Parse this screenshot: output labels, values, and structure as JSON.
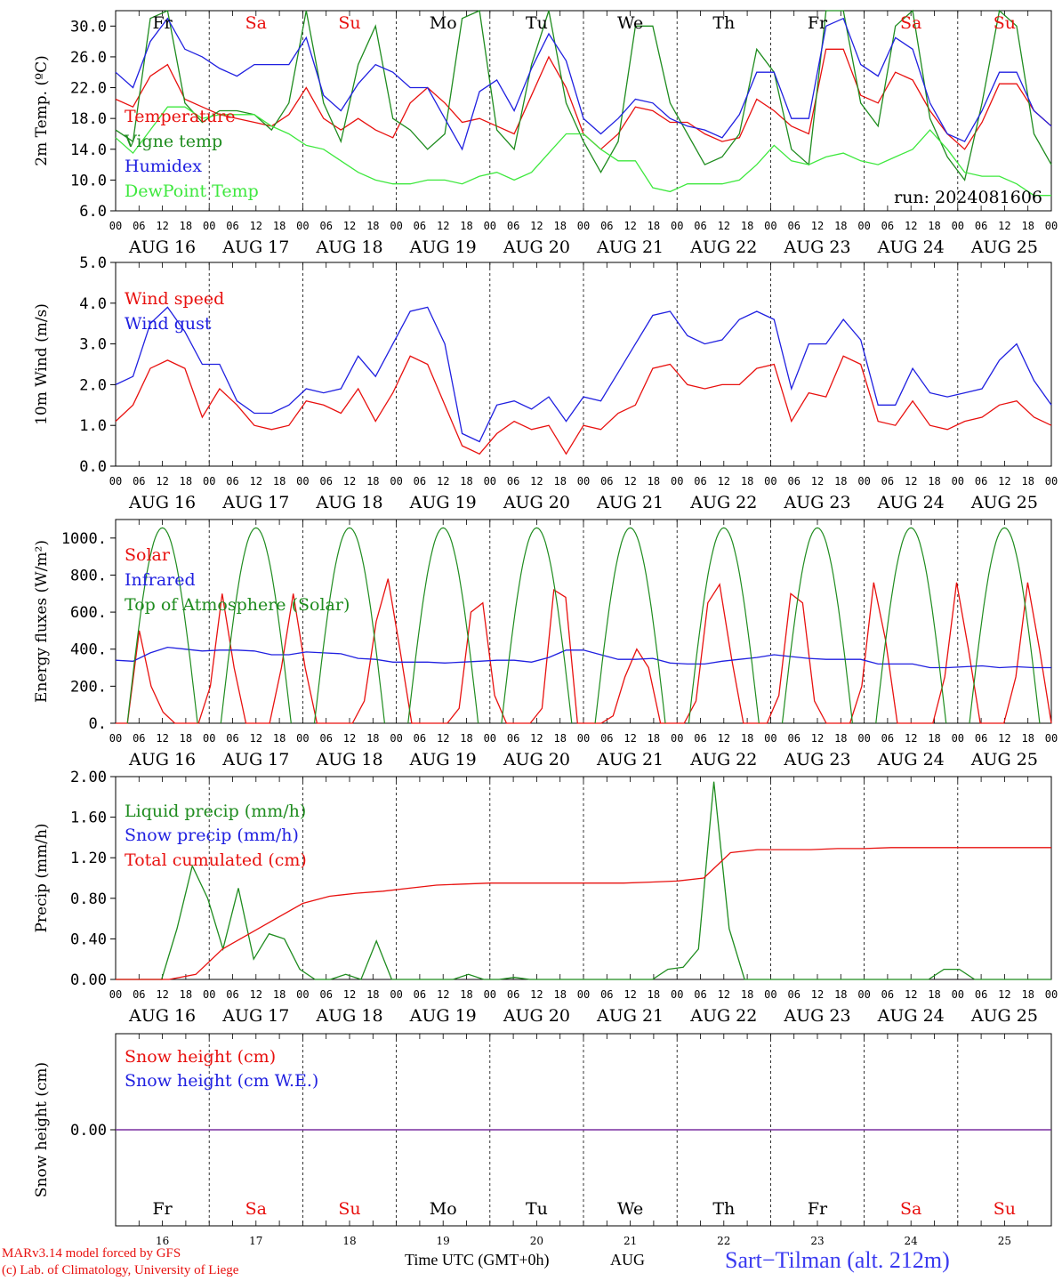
{
  "colors": {
    "red": "#e8110f",
    "green": "#1f8c1f",
    "blue": "#2020e0",
    "lightgreen": "#3ee83e",
    "purple": "#7a2fa0",
    "title_blue": "#3a3af0"
  },
  "days": {
    "weekdays": [
      "Fr",
      "Sa",
      "Su",
      "Mo",
      "Tu",
      "We",
      "Th",
      "Fr",
      "Sa",
      "Su"
    ],
    "weekend_flags": [
      false,
      true,
      true,
      false,
      false,
      false,
      false,
      false,
      true,
      true
    ],
    "dates": [
      "AUG 16",
      "AUG 17",
      "AUG 18",
      "AUG 19",
      "AUG 20",
      "AUG 21",
      "AUG 22",
      "AUG 23",
      "AUG 24",
      "AUG 25"
    ],
    "day_numbers": [
      "16",
      "17",
      "18",
      "19",
      "20",
      "21",
      "22",
      "23",
      "24",
      "25"
    ],
    "hour_ticks": [
      "00",
      "06",
      "12",
      "18"
    ],
    "final_tick": "00"
  },
  "footer": {
    "credit1": "MARv3.14 model forced by GFS",
    "credit2": "(c) Lab. of Climatology, University of Liege",
    "time_label": "Time UTC (GMT+0h)",
    "month": "AUG",
    "station": "Sart−Tilman (alt. 212m)"
  },
  "chart_data": [
    {
      "type": "line",
      "ylabel": "2m Temp. (ºC)",
      "ylim": [
        6,
        32
      ],
      "yticks": [
        "30.0",
        "26.0",
        "22.0",
        "18.0",
        "14.0",
        "10.0",
        "6.0"
      ],
      "run_label": "run: 2024081606",
      "legend": [
        "Temperature",
        "Vigne temp",
        "Humidex",
        "DewPoint Temp"
      ],
      "series": [
        {
          "name": "Temperature",
          "color": "red",
          "values": [
            20.5,
            19.5,
            23.5,
            25,
            20.5,
            19.5,
            18.5,
            18,
            17.5,
            17,
            18.5,
            22,
            18,
            16.5,
            18,
            16.5,
            15.5,
            20,
            22,
            20,
            17.5,
            18,
            17,
            16,
            21,
            26,
            22,
            16,
            14,
            16,
            19.5,
            19,
            17.5,
            17.5,
            16,
            15,
            15.5,
            20.5,
            19,
            17,
            16,
            27,
            27,
            21,
            20,
            24,
            23,
            19,
            16,
            14,
            17.5,
            22.5,
            22.5,
            19,
            17
          ]
        },
        {
          "name": "Vigne temp",
          "color": "green",
          "values": [
            16.5,
            15,
            31,
            35,
            20,
            17.5,
            19,
            19,
            18.5,
            16.5,
            20,
            32,
            20,
            15,
            25,
            30,
            18,
            16.5,
            14,
            16,
            31,
            33,
            16.5,
            14,
            25,
            34,
            20,
            15,
            11,
            15,
            30,
            30,
            20,
            16,
            12,
            13,
            16,
            27,
            24,
            14,
            12,
            33,
            32,
            20,
            17,
            30,
            32,
            18,
            13,
            10,
            20,
            34,
            30,
            16,
            12
          ]
        },
        {
          "name": "Humidex",
          "color": "blue",
          "values": [
            24,
            22,
            28,
            31,
            27,
            26,
            24.5,
            23.5,
            25,
            25,
            25,
            28.5,
            21,
            19,
            22.5,
            25,
            24,
            22,
            22,
            18,
            14,
            21.5,
            23,
            19,
            24.5,
            29,
            25.5,
            18,
            16,
            18,
            20.5,
            20,
            18,
            17,
            16.5,
            15.5,
            18.5,
            24,
            24,
            18,
            18,
            30,
            31,
            25,
            23.5,
            28.5,
            27,
            20,
            16,
            15,
            19,
            24,
            24,
            19,
            17
          ]
        },
        {
          "name": "DewPoint Temp",
          "color": "lightgreen",
          "values": [
            15.5,
            13.5,
            16.5,
            19.5,
            19.5,
            18,
            18.5,
            18.5,
            18.5,
            17,
            16,
            14.5,
            14,
            12.5,
            11,
            10,
            9.5,
            9.5,
            10,
            10,
            9.5,
            10.5,
            11,
            10,
            11,
            13.5,
            16,
            16,
            14,
            12.5,
            12.5,
            9,
            8.5,
            9.5,
            9.5,
            9.5,
            10,
            12,
            14.5,
            12.5,
            12,
            13,
            13.5,
            12.5,
            12,
            13,
            14,
            16.5,
            14,
            11,
            10.5,
            10.5,
            9.5,
            8,
            8
          ]
        }
      ]
    },
    {
      "type": "line",
      "ylabel": "10m Wind (m/s)",
      "ylim": [
        0,
        5
      ],
      "yticks": [
        "5.0",
        "4.0",
        "3.0",
        "2.0",
        "1.0",
        "0.0"
      ],
      "legend": [
        "Wind speed",
        "Wind gust"
      ],
      "series": [
        {
          "name": "Wind speed",
          "color": "red",
          "values": [
            1.1,
            1.5,
            2.4,
            2.6,
            2.4,
            1.2,
            1.9,
            1.5,
            1.0,
            0.9,
            1.0,
            1.6,
            1.5,
            1.3,
            1.9,
            1.1,
            1.8,
            2.7,
            2.5,
            1.5,
            0.5,
            0.3,
            0.8,
            1.1,
            0.9,
            1.0,
            0.3,
            1.0,
            0.9,
            1.3,
            1.5,
            2.4,
            2.5,
            2.0,
            1.9,
            2.0,
            2.0,
            2.4,
            2.5,
            1.1,
            1.8,
            1.7,
            2.7,
            2.5,
            1.1,
            1.0,
            1.6,
            1.0,
            0.9,
            1.1,
            1.2,
            1.5,
            1.6,
            1.2,
            1.0
          ]
        },
        {
          "name": "Wind gust",
          "color": "blue",
          "values": [
            2.0,
            2.2,
            3.5,
            3.9,
            3.3,
            2.5,
            2.5,
            1.6,
            1.3,
            1.3,
            1.5,
            1.9,
            1.8,
            1.9,
            2.7,
            2.2,
            3.0,
            3.8,
            3.9,
            3.0,
            0.8,
            0.6,
            1.5,
            1.6,
            1.4,
            1.7,
            1.1,
            1.7,
            1.6,
            2.3,
            3.0,
            3.7,
            3.8,
            3.2,
            3.0,
            3.1,
            3.6,
            3.8,
            3.6,
            1.9,
            3.0,
            3.0,
            3.6,
            3.1,
            1.5,
            1.5,
            2.4,
            1.8,
            1.7,
            1.8,
            1.9,
            2.6,
            3.0,
            2.1,
            1.5
          ]
        }
      ]
    },
    {
      "type": "line",
      "ylabel": "Energy fluxes (W/m²)",
      "ylim": [
        0,
        1100
      ],
      "yticks": [
        "1000.",
        "800.",
        "600.",
        "400.",
        "200.",
        "0."
      ],
      "legend": [
        "Solar",
        "Infrared",
        "Top of Atmosphere (Solar)"
      ],
      "series": [
        {
          "name": "Solar",
          "color": "red",
          "values": [
            0,
            0,
            500,
            200,
            60,
            0,
            0,
            0,
            200,
            700,
            300,
            0,
            0,
            0,
            300,
            700,
            300,
            0,
            0,
            0,
            0,
            120,
            550,
            780,
            400,
            0,
            0,
            0,
            0,
            80,
            600,
            650,
            150,
            0,
            0,
            0,
            80,
            720,
            680,
            0,
            0,
            0,
            40,
            250,
            400,
            300,
            0,
            0,
            0,
            120,
            650,
            750,
            350,
            0,
            0,
            0,
            150,
            700,
            650,
            120,
            0,
            0,
            0,
            200,
            760,
            450,
            0,
            0,
            0,
            0,
            250,
            760,
            400,
            0,
            0,
            0,
            250,
            760,
            400,
            0
          ]
        },
        {
          "name": "Infrared",
          "color": "blue",
          "values": [
            340,
            335,
            380,
            410,
            400,
            390,
            395,
            395,
            390,
            370,
            370,
            385,
            380,
            375,
            350,
            345,
            330,
            330,
            330,
            325,
            330,
            335,
            340,
            340,
            330,
            355,
            395,
            395,
            370,
            345,
            345,
            350,
            325,
            320,
            320,
            335,
            345,
            355,
            370,
            360,
            350,
            345,
            345,
            345,
            320,
            320,
            320,
            300,
            300,
            305,
            310,
            300,
            305,
            300,
            300
          ]
        },
        {
          "name": "Top of Atmosphere (Solar)",
          "color": "green",
          "values": [
            0,
            0,
            350,
            900,
            1055,
            900,
            350,
            0,
            0,
            0
          ]
        }
      ]
    },
    {
      "type": "line",
      "ylabel": "Precip (mm/h)",
      "ylim": [
        0,
        2.0
      ],
      "yticks": [
        "2.00",
        "1.60",
        "1.20",
        "0.80",
        "0.40",
        "0.00"
      ],
      "legend": [
        "Liquid precip (mm/h)",
        "Snow precip (mm/h)",
        "Total cumulated (cm)"
      ],
      "series": [
        {
          "name": "Liquid precip (mm/h)",
          "color": "green",
          "values": [
            0,
            0,
            0,
            0,
            0.5,
            1.12,
            0.8,
            0.3,
            0.9,
            0.2,
            0.45,
            0.4,
            0.1,
            0,
            0,
            0.05,
            0,
            0.38,
            0,
            0,
            0,
            0,
            0,
            0.05,
            0,
            0,
            0.02,
            0,
            0,
            0,
            0,
            0,
            0,
            0,
            0,
            0,
            0.1,
            0.12,
            0.3,
            1.95,
            0.5,
            0,
            0,
            0,
            0,
            0,
            0,
            0,
            0,
            0,
            0,
            0,
            0,
            0,
            0.1,
            0.1,
            0,
            0,
            0,
            0,
            0,
            0
          ]
        },
        {
          "name": "Snow precip (mm/h)",
          "color": "blue",
          "values": []
        },
        {
          "name": "Total cumulated (cm)",
          "color": "red",
          "values": [
            0,
            0,
            0,
            0.05,
            0.3,
            0.45,
            0.6,
            0.75,
            0.82,
            0.85,
            0.87,
            0.9,
            0.93,
            0.94,
            0.95,
            0.95,
            0.95,
            0.95,
            0.95,
            0.95,
            0.96,
            0.97,
            1.0,
            1.25,
            1.28,
            1.28,
            1.28,
            1.29,
            1.29,
            1.3,
            1.3,
            1.3,
            1.3,
            1.3,
            1.3,
            1.3
          ]
        }
      ]
    },
    {
      "type": "line",
      "ylabel": "Snow height (cm)",
      "yticks": [
        "0.00"
      ],
      "legend": [
        "Snow height (cm)",
        "Snow height (cm W.E.)"
      ],
      "series": [
        {
          "name": "Snow height (cm)",
          "color": "red",
          "values": [
            0,
            0
          ]
        },
        {
          "name": "Snow height (cm W.E.)",
          "color": "blue",
          "values": [
            0,
            0
          ]
        }
      ]
    }
  ]
}
